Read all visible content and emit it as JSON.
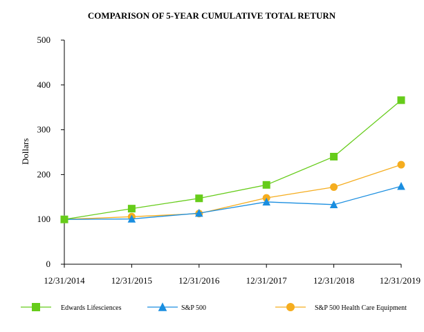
{
  "chart_data": {
    "type": "line",
    "title": "COMPARISON OF 5-YEAR CUMULATIVE TOTAL RETURN",
    "xlabel": "",
    "ylabel": "Dollars",
    "categories": [
      "12/31/2014",
      "12/31/2015",
      "12/31/2016",
      "12/31/2017",
      "12/31/2018",
      "12/31/2019"
    ],
    "ylim": [
      0,
      500
    ],
    "yticks": [
      0,
      100,
      200,
      300,
      400,
      500
    ],
    "grid": false,
    "legend_position": "bottom",
    "series": [
      {
        "name": "Edwards Lifesciences",
        "color": "#66cc1a",
        "marker": "square",
        "values": [
          100,
          124,
          147,
          177,
          240,
          366
        ]
      },
      {
        "name": "S&P 500",
        "color": "#1a8ee0",
        "marker": "triangle",
        "values": [
          100,
          101,
          114,
          139,
          133,
          174
        ]
      },
      {
        "name": "S&P 500 Health Care Equipment",
        "color": "#f5ad1f",
        "marker": "circle",
        "values": [
          100,
          106,
          113,
          148,
          172,
          222
        ]
      }
    ]
  }
}
